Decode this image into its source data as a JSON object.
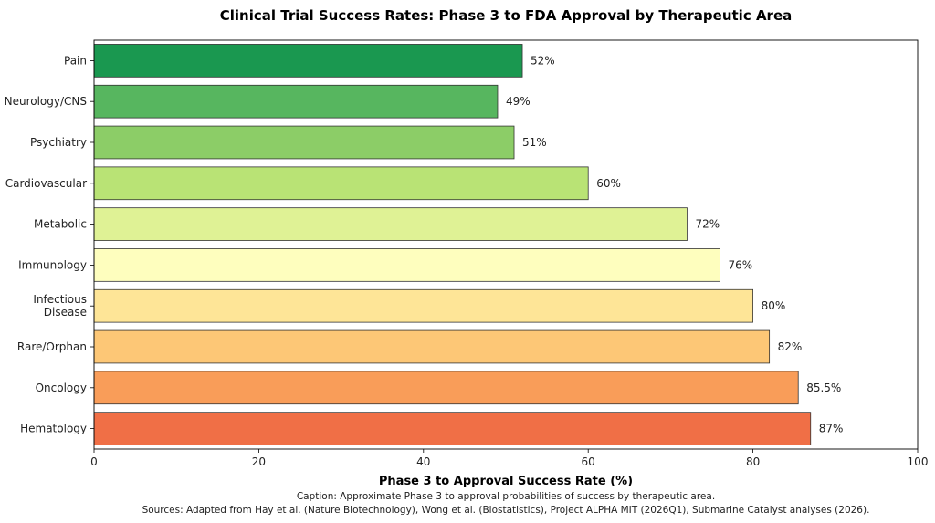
{
  "chart_data": {
    "type": "bar",
    "orientation": "horizontal",
    "title": "Clinical Trial Success Rates: Phase 3 to FDA Approval by Therapeutic Area",
    "xlabel": "Phase 3 to Approval Success Rate (%)",
    "ylabel": "",
    "xlim": [
      0,
      100
    ],
    "xticks": [
      0,
      20,
      40,
      60,
      80,
      100
    ],
    "grid": false,
    "categories": [
      "Pain",
      "Neurology/CNS",
      "Psychiatry",
      "Cardiovascular",
      "Metabolic",
      "Immunology",
      "Infectious\nDisease",
      "Rare/Orphan",
      "Oncology",
      "Hematology"
    ],
    "values": [
      52,
      49,
      51,
      60,
      72,
      76,
      80,
      82,
      85.5,
      87
    ],
    "value_labels": [
      "52%",
      "49%",
      "51%",
      "60%",
      "72%",
      "76%",
      "80%",
      "82%",
      "85.5%",
      "87%"
    ],
    "colors": [
      "#1a9850",
      "#57b65f",
      "#8ccd67",
      "#b9e375",
      "#dff295",
      "#fefebe",
      "#fee597",
      "#fdc776",
      "#f99d59",
      "#f06f46"
    ],
    "caption": "Caption: Approximate Phase 3 to approval probabilities of success by therapeutic area.",
    "sources": "Sources: Adapted from Hay et al. (Nature Biotechnology), Wong et al. (Biostatistics), Project ALPHA MIT (2026Q1), Submarine Catalyst analyses (2026)."
  }
}
